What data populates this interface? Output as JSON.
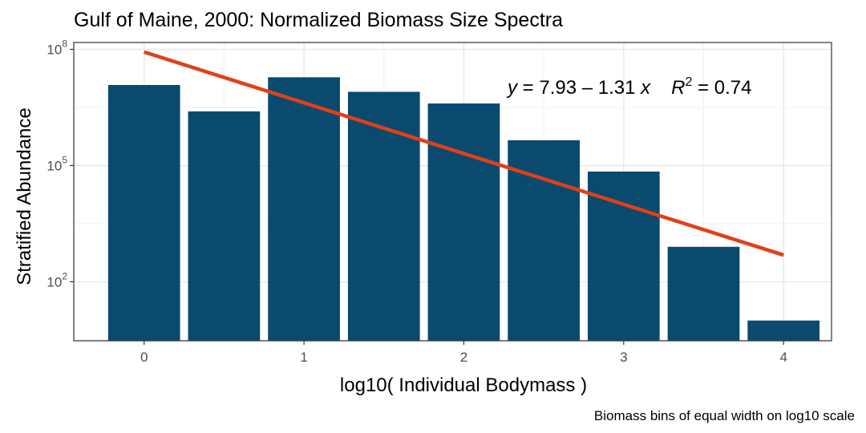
{
  "chart_data": {
    "type": "bar",
    "title": "Gulf of Maine, 2000: Normalized Biomass Size Spectra",
    "xlabel": "log10( Individual Bodymass )",
    "ylabel": "Stratified Abundance",
    "caption": "Biomass bins of equal width on log10 scale",
    "y_scale": "log10",
    "grid": true,
    "x": [
      0,
      0.5,
      1,
      1.5,
      2,
      2.5,
      3,
      3.5,
      4
    ],
    "values": [
      12000000,
      2500000,
      19000000,
      8000000,
      4000000,
      450000,
      70000,
      800,
      10
    ],
    "bar_color": "#0b4a6f",
    "xlim": [
      -0.44,
      4.3
    ],
    "ylim": [
      3,
      150000000
    ],
    "x_ticks": [
      0,
      1,
      2,
      3,
      4
    ],
    "x_tick_labels": [
      "0",
      "1",
      "2",
      "3",
      "4"
    ],
    "y_ticks": [
      100,
      100000,
      100000000
    ],
    "y_tick_labels": [
      {
        "base": "10",
        "exp": "2"
      },
      {
        "base": "10",
        "exp": "5"
      },
      {
        "base": "10",
        "exp": "8"
      }
    ],
    "fit_line": {
      "color": "#e0401a",
      "intercept": 7.93,
      "slope": -1.31,
      "x_range": [
        0,
        4
      ],
      "label": {
        "y_var": "y",
        "eq_text": " = 7.93 – 1.31 ",
        "x_var": "x",
        "r_var": "R",
        "r_exp": "2",
        "r_value": " = 0.74"
      }
    }
  }
}
